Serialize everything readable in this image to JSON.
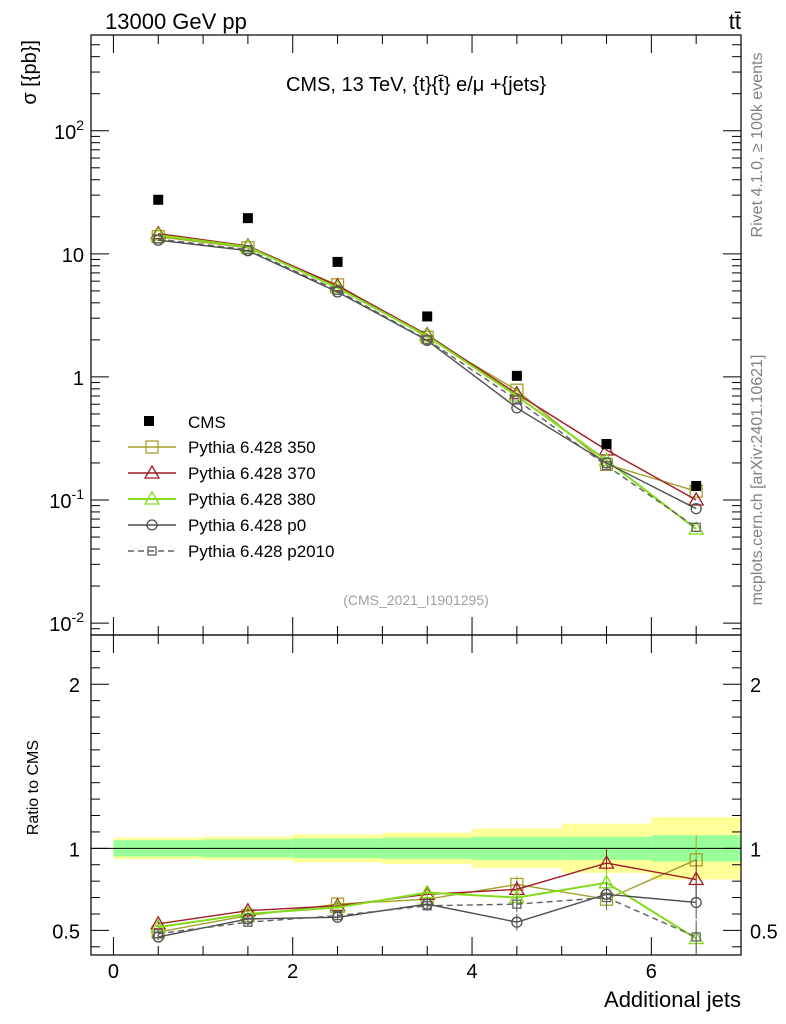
{
  "header": {
    "left": "13000 GeV pp",
    "right": "tt̄"
  },
  "side_text": {
    "rivet": "Rivet 4.1.0, ≥ 100k events",
    "mcplots": "mcplots.cern.ch [arXiv:2401.10621]"
  },
  "chart_data": {
    "type": "line",
    "title": "CMS, 13 TeV, {t}{t̄} e/μ +{jets}",
    "analysis_label": "(CMS_2021_I1901295)",
    "xlabel": "Additional jets",
    "ylabel": "σ [{pb}]",
    "ratio_ylabel": "Ratio to CMS",
    "xlim": [
      -0.25,
      7.0
    ],
    "ylim": [
      0.008,
      600
    ],
    "yscale": "log",
    "ratio_ylim": [
      0.35,
      2.3
    ],
    "x_ticks": [
      "0",
      "2",
      "4",
      "6"
    ],
    "y_ticks": [
      "10^-2",
      "10^-1",
      "1",
      "10",
      "10^2"
    ],
    "ratio_ticks": [
      "0.5",
      "1",
      "2"
    ],
    "bin_edges": [
      0,
      1,
      2,
      3,
      4,
      5,
      6,
      7
    ],
    "x": [
      0.5,
      1.5,
      2.5,
      3.5,
      4.5,
      5.5,
      6.5
    ],
    "legend_position": "lower-left",
    "data": {
      "name": "CMS",
      "values": [
        27.5,
        19.5,
        8.6,
        3.1,
        1.02,
        0.285,
        0.13
      ],
      "band_green": [
        0.05,
        0.055,
        0.06,
        0.065,
        0.07,
        0.07,
        0.08
      ],
      "band_yellow": [
        0.065,
        0.072,
        0.085,
        0.095,
        0.12,
        0.15,
        0.19
      ]
    },
    "series": [
      {
        "name": "Pythia 6.428 350",
        "color": "#a3a22b",
        "marker": "square-open",
        "dash": "solid",
        "values": [
          13.8,
          11.2,
          5.6,
          2.1,
          0.78,
          0.195,
          0.118
        ],
        "ratio": [
          0.49,
          0.59,
          0.66,
          0.69,
          0.78,
          0.69,
          0.93
        ],
        "ratio_err": [
          0.02,
          0.02,
          0.02,
          0.03,
          0.05,
          0.07,
          0.15
        ]
      },
      {
        "name": "Pythia 6.428 370",
        "color": "#a01c27",
        "marker": "triangle-open",
        "dash": "solid",
        "values": [
          14.6,
          11.6,
          5.5,
          2.2,
          0.73,
          0.255,
          0.1
        ],
        "ratio": [
          0.54,
          0.62,
          0.65,
          0.72,
          0.75,
          0.91,
          0.81
        ],
        "ratio_err": [
          0.02,
          0.02,
          0.02,
          0.03,
          0.05,
          0.09,
          0.12
        ]
      },
      {
        "name": "Pythia 6.428 380",
        "color": "#82dc1c",
        "marker": "triangle-open",
        "dash": "solid",
        "values": [
          14.2,
          11.4,
          5.3,
          2.15,
          0.7,
          0.21,
          0.058
        ],
        "ratio": [
          0.52,
          0.6,
          0.64,
          0.73,
          0.7,
          0.79,
          0.45
        ],
        "ratio_err": [
          0.02,
          0.02,
          0.02,
          0.03,
          0.05,
          0.08,
          0.1
        ]
      },
      {
        "name": "Pythia 6.428 p0",
        "color": "#4d4d4d",
        "marker": "circle-open",
        "dash": "solid",
        "values": [
          12.9,
          10.6,
          4.9,
          1.98,
          0.56,
          0.2,
          0.085
        ],
        "ratio": [
          0.46,
          0.57,
          0.58,
          0.66,
          0.55,
          0.72,
          0.67
        ],
        "ratio_err": [
          0.02,
          0.02,
          0.02,
          0.03,
          0.05,
          0.07,
          0.1
        ]
      },
      {
        "name": "Pythia 6.428 p2010",
        "color": "#606060",
        "marker": "square-small",
        "dash": "dashed",
        "values": [
          13.2,
          10.8,
          5.05,
          2.0,
          0.65,
          0.19,
          0.06
        ],
        "ratio": [
          0.48,
          0.55,
          0.59,
          0.65,
          0.66,
          0.7,
          0.46
        ],
        "ratio_err": [
          0.02,
          0.02,
          0.02,
          0.03,
          0.05,
          0.07,
          0.1
        ]
      }
    ]
  }
}
